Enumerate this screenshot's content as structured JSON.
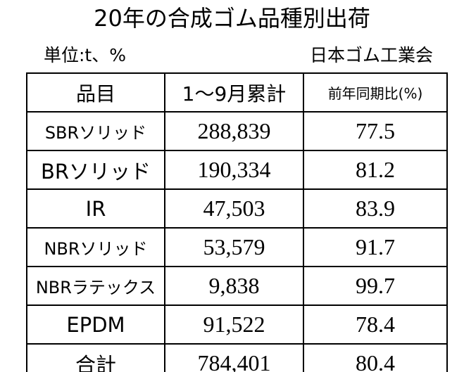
{
  "header": {
    "title": "20年の合成ゴム品種別出荷",
    "unit": "単位:t、%",
    "source": "日本ゴム工業会"
  },
  "table": {
    "columns": [
      "品目",
      "1～9月累計",
      "前年同期比(%)"
    ],
    "rows": [
      [
        "SBRソリッド",
        "288,839",
        "77.5"
      ],
      [
        "BRソリッド",
        "190,334",
        "81.2"
      ],
      [
        "IR",
        "47,503",
        "83.9"
      ],
      [
        "NBRソリッド",
        "53,579",
        "91.7"
      ],
      [
        "NBRラテックス",
        "9,838",
        "99.7"
      ],
      [
        "EPDM",
        "91,522",
        "78.4"
      ],
      [
        "合計",
        "784,401",
        "80.4"
      ]
    ]
  }
}
